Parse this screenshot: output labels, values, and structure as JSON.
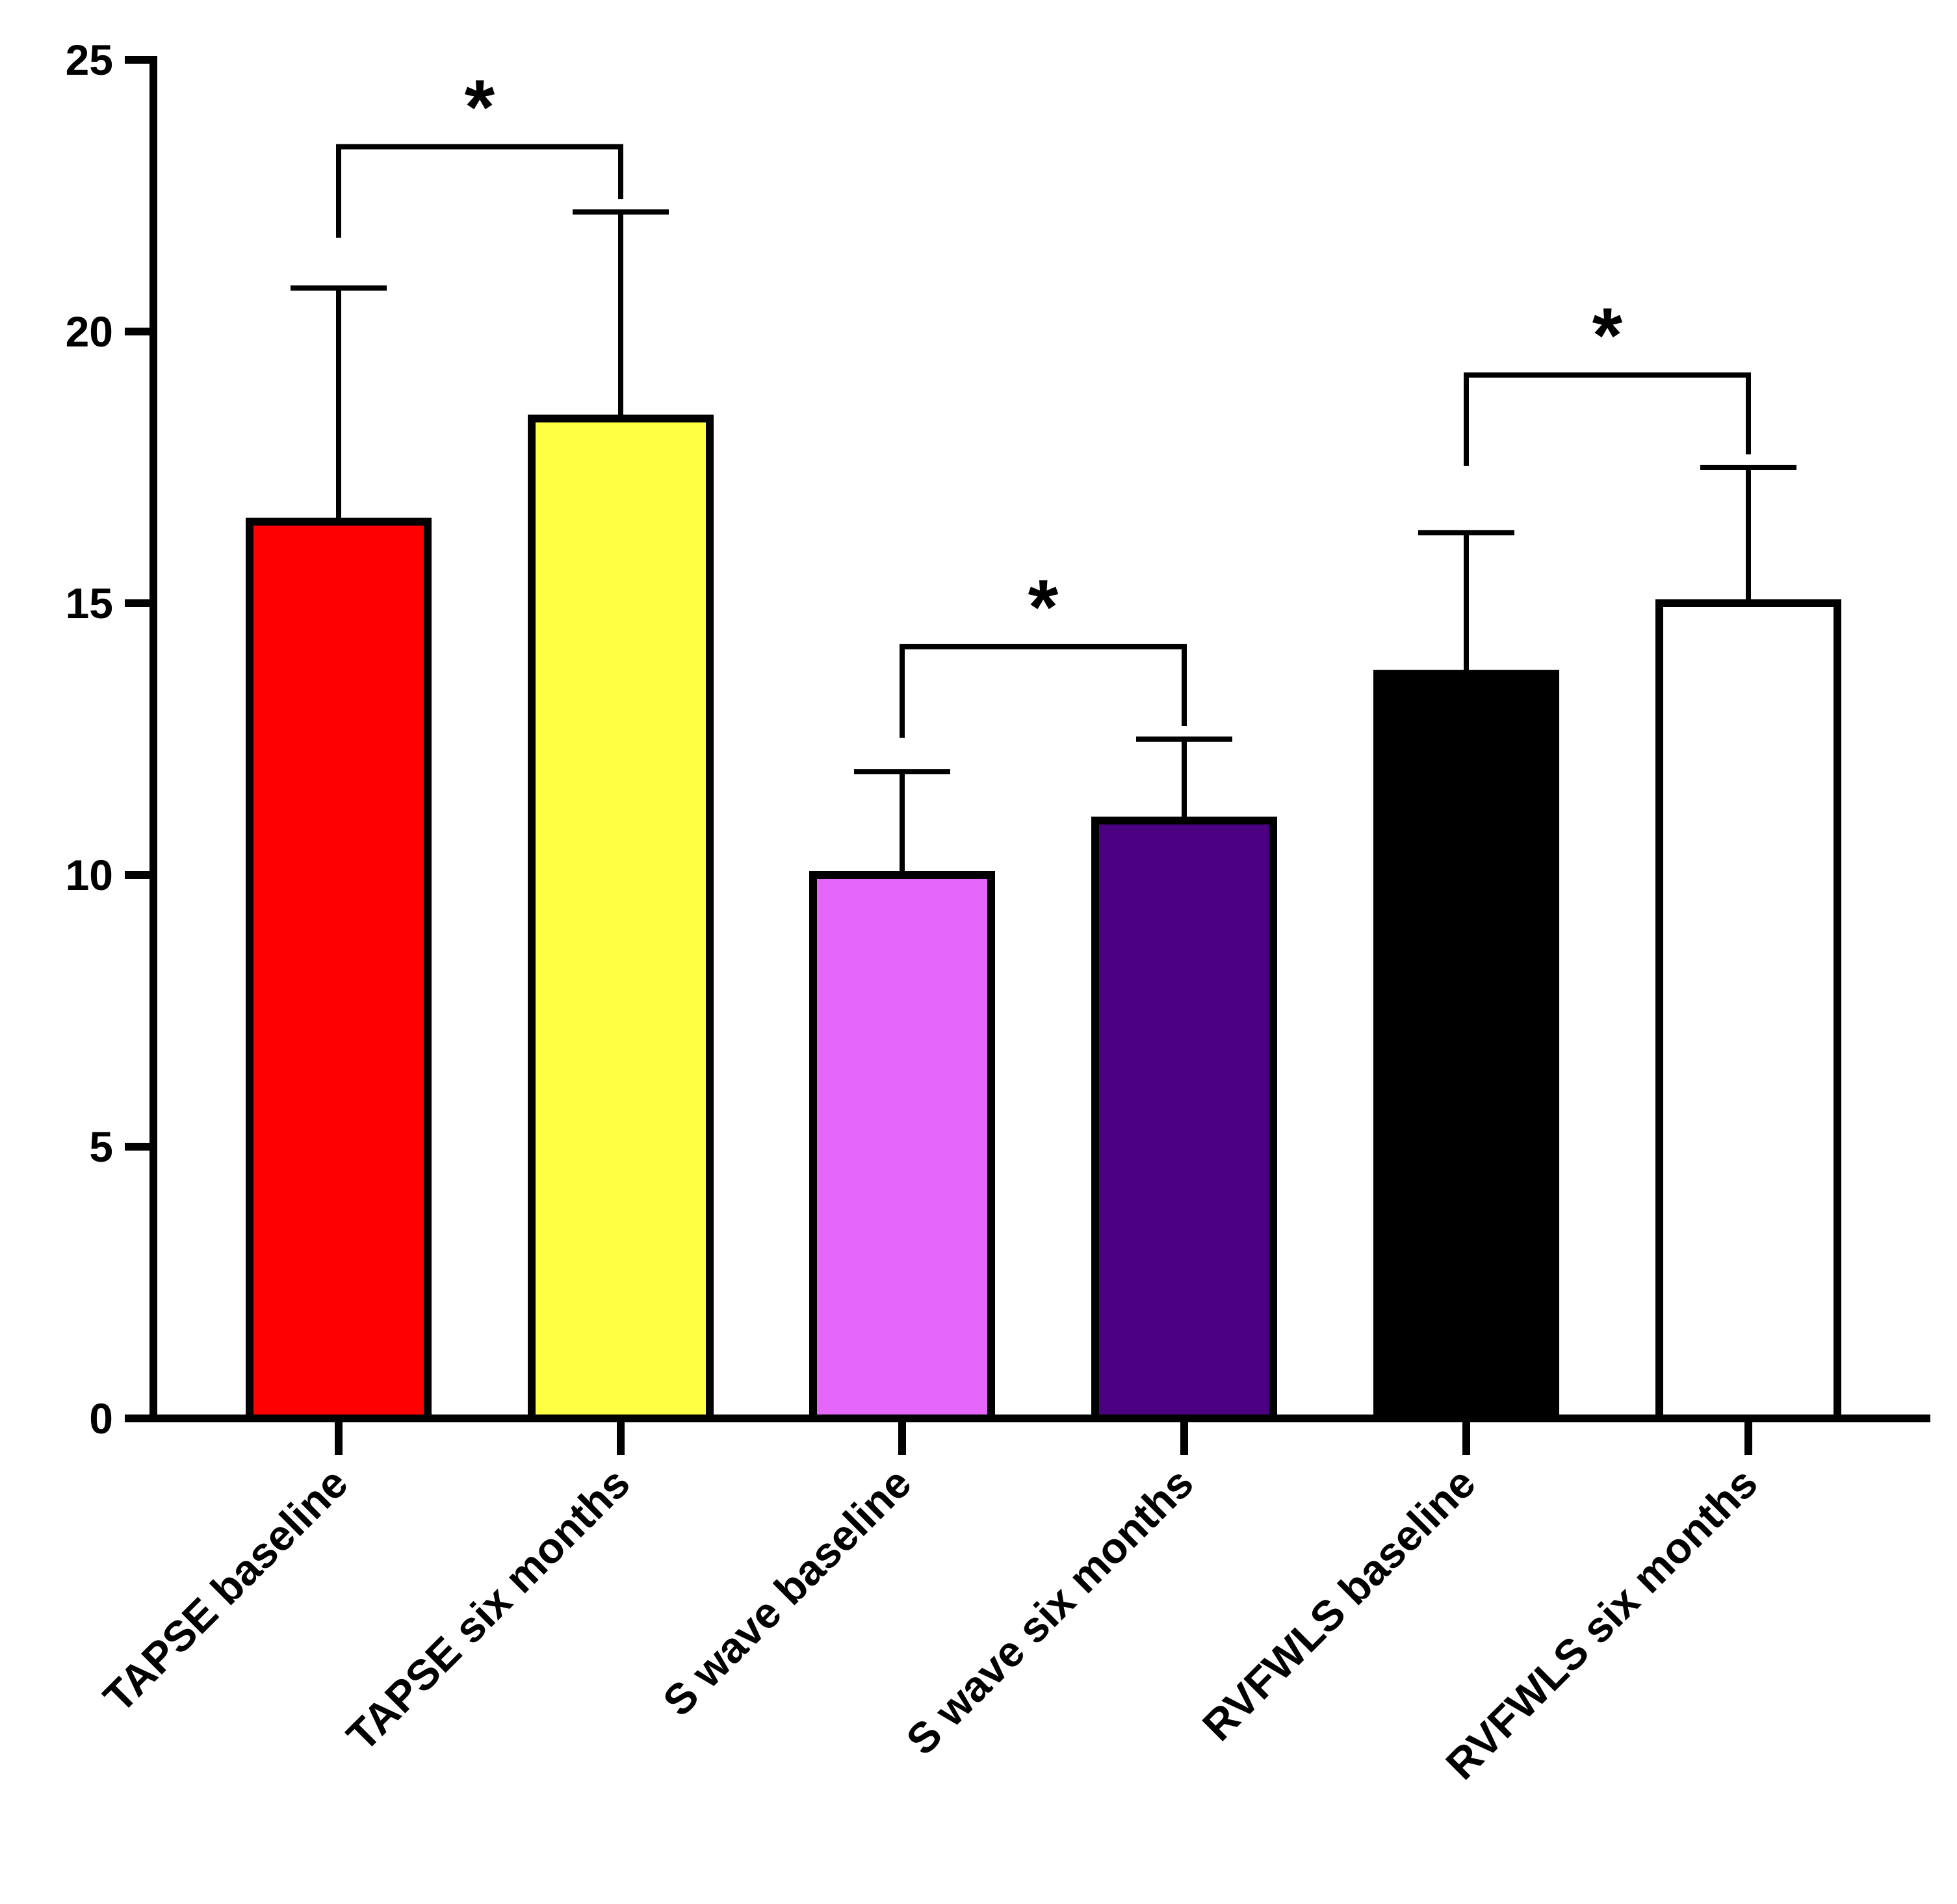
{
  "chart_data": {
    "type": "bar",
    "title": "",
    "xlabel": "",
    "ylabel": "",
    "ylim": [
      0,
      25
    ],
    "yticks": [
      0,
      5,
      10,
      15,
      20,
      25
    ],
    "ytick_labels": [
      "0",
      "5",
      "10",
      "15",
      "20",
      "25"
    ],
    "grid": false,
    "categories": [
      "TAPSE baseline",
      "TAPSE six months",
      "S wave baseline",
      "S wave six  months",
      "RVFWLS baseline",
      "RVFWLS six months"
    ],
    "values": [
      16.5,
      18.4,
      10.0,
      11.0,
      13.7,
      15.0
    ],
    "error_upper": [
      20.8,
      22.2,
      11.9,
      12.5,
      16.3,
      17.5
    ],
    "colors": [
      "#ff0000",
      "#ffff44",
      "#e466fa",
      "#4a0080",
      "#000000",
      "#ffffff"
    ],
    "significance": [
      {
        "from": 0,
        "to": 1,
        "y": 23.4,
        "label": "*"
      },
      {
        "from": 2,
        "to": 3,
        "y": 14.2,
        "label": "*"
      },
      {
        "from": 4,
        "to": 5,
        "y": 19.2,
        "label": "*"
      }
    ]
  }
}
